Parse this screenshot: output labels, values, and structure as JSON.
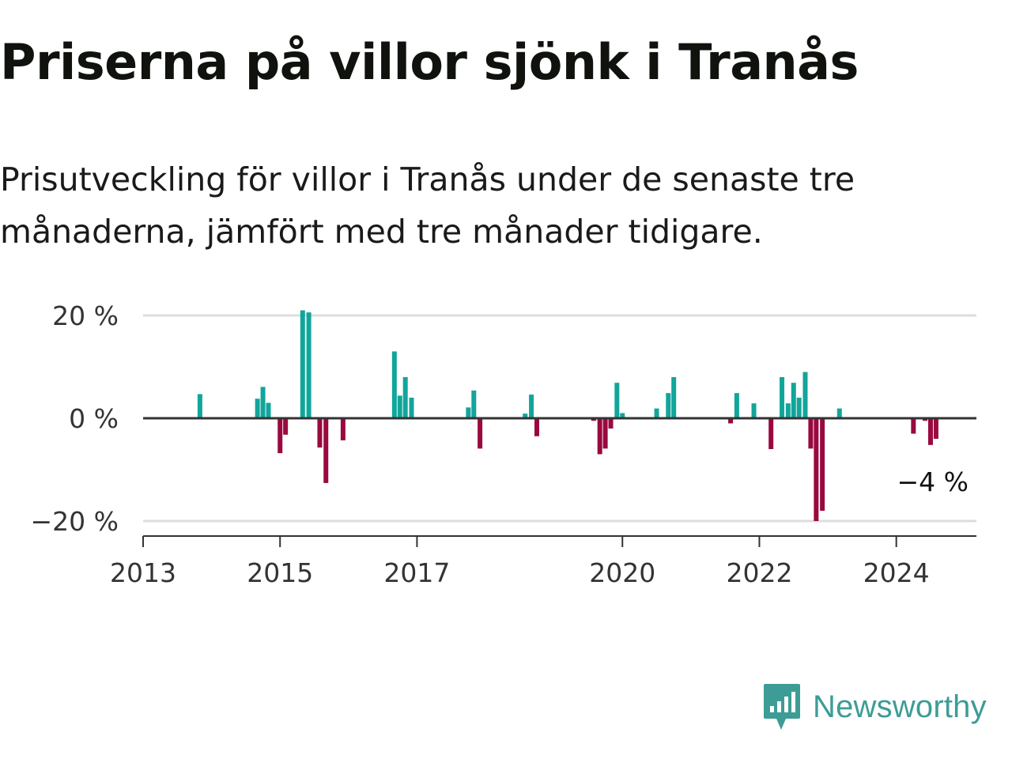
{
  "title": "Priserna på villor sjönk i Tranås",
  "subtitle": "Prisutveckling för villor i Tranås under de senaste tre månaderna, jämfört med tre månader tidigare.",
  "brand": {
    "name": "Newsworthy"
  },
  "colors": {
    "positive": "#12a59b",
    "negative": "#99093f",
    "grid": "#dddddd",
    "axis": "#333333",
    "brand": "#3d9c96"
  },
  "chart_data": {
    "type": "bar",
    "title": "Priserna på villor sjönk i Tranås",
    "xlabel": "",
    "ylabel": "",
    "ylim": [
      -22,
      20
    ],
    "xlim": [
      2013.0,
      2025.17
    ],
    "grid": true,
    "y_ticks": [
      {
        "value": 20,
        "label": "20 %"
      },
      {
        "value": 0,
        "label": "0 %"
      },
      {
        "value": -20,
        "label": "−20 %"
      }
    ],
    "x_ticks": [
      {
        "value": 2013,
        "label": "2013"
      },
      {
        "value": 2015,
        "label": "2015"
      },
      {
        "value": 2017,
        "label": "2017"
      },
      {
        "value": 2020,
        "label": "2020"
      },
      {
        "value": 2022,
        "label": "2022"
      },
      {
        "value": 2024,
        "label": "2024"
      }
    ],
    "annotation": {
      "label": "−4 %",
      "x": 2024.58,
      "y": -4
    },
    "x": [
      2013.83,
      2014.67,
      2014.75,
      2014.83,
      2015.0,
      2015.08,
      2015.33,
      2015.42,
      2015.58,
      2015.67,
      2015.92,
      2016.67,
      2016.75,
      2016.83,
      2016.92,
      2017.75,
      2017.83,
      2017.92,
      2018.58,
      2018.67,
      2018.75,
      2019.58,
      2019.67,
      2019.75,
      2019.83,
      2019.92,
      2020.0,
      2020.5,
      2020.67,
      2020.75,
      2021.58,
      2021.67,
      2021.92,
      2022.17,
      2022.33,
      2022.42,
      2022.5,
      2022.58,
      2022.67,
      2022.75,
      2022.83,
      2022.92,
      2023.17,
      2024.25,
      2024.42,
      2024.5,
      2024.58
    ],
    "values": [
      4.7,
      3.8,
      6.1,
      3.0,
      -6.8,
      -3.2,
      21.0,
      20.6,
      -5.7,
      -12.6,
      -4.3,
      13.0,
      4.4,
      8.0,
      4.0,
      2.1,
      5.4,
      -5.9,
      0.9,
      4.6,
      -3.5,
      -0.5,
      -7.0,
      -5.9,
      -2.0,
      6.9,
      1.0,
      1.9,
      4.9,
      8.0,
      -1.0,
      4.9,
      2.9,
      -6.0,
      8.0,
      2.9,
      6.9,
      4.0,
      9.0,
      -5.9,
      -20.0,
      -18.0,
      1.9,
      -3.0,
      -0.5,
      -5.2,
      -4.0
    ]
  }
}
